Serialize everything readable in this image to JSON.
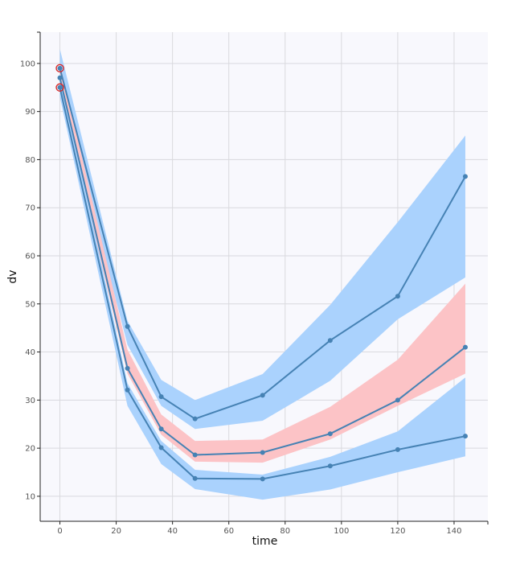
{
  "chart_data": {
    "type": "line",
    "title": "",
    "xlabel": "time",
    "ylabel": "dv",
    "xlim": [
      -7,
      152
    ],
    "ylim": [
      4.8,
      106.5
    ],
    "x_ticks": [
      0,
      20,
      40,
      60,
      80,
      100,
      120,
      140
    ],
    "y_ticks": [
      10,
      20,
      30,
      40,
      50,
      60,
      70,
      80,
      90,
      100
    ],
    "grid": true,
    "x": [
      0,
      24,
      36,
      48,
      72,
      96,
      120,
      144
    ],
    "series": [
      {
        "values": [
          99,
          45.3,
          30.7,
          26.1,
          31.0,
          42.4,
          51.6,
          76.5
        ]
      },
      {
        "values": [
          97,
          36.6,
          24.0,
          18.6,
          19.1,
          23.0,
          30.0,
          41.0
        ]
      },
      {
        "values": [
          95,
          32.1,
          20.1,
          13.7,
          13.6,
          16.3,
          19.7,
          22.5
        ]
      }
    ],
    "bands": [
      {
        "color": "#aad2fd",
        "upper": [
          103,
          46.5,
          34.2,
          30.0,
          35.4,
          49.8,
          67.0,
          85.0
        ],
        "lower": [
          96,
          41.5,
          28.8,
          24.0,
          25.7,
          34.0,
          46.8,
          55.5
        ]
      },
      {
        "color": "#fcc3c6",
        "upper": [
          100,
          40.5,
          27.0,
          21.5,
          21.8,
          28.6,
          38.4,
          54.2
        ],
        "lower": [
          95,
          35.5,
          22.8,
          17.2,
          17.0,
          21.8,
          28.8,
          35.5
        ]
      },
      {
        "color": "#aad2fd",
        "upper": [
          98,
          33.5,
          21.5,
          15.5,
          14.5,
          18.2,
          23.5,
          34.7
        ],
        "lower": [
          93,
          28.8,
          16.7,
          11.5,
          9.3,
          11.4,
          15.0,
          18.3
        ]
      }
    ],
    "outliers": [
      {
        "x": 0,
        "y": 99
      },
      {
        "x": 0,
        "y": 95
      }
    ],
    "colors": {
      "line": "#4682b4",
      "band_blue": "#aad2fd",
      "band_red": "#fcc3c6",
      "outlier": "#d62728",
      "panel_bg": "#f8f8fd",
      "grid": "#d9d9de"
    }
  }
}
